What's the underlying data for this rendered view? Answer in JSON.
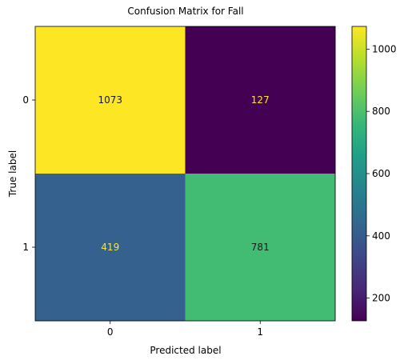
{
  "chart_data": {
    "type": "heatmap",
    "title": "Confusion Matrix for Fall",
    "xlabel": "Predicted label",
    "ylabel": "True label",
    "x_categories": [
      "0",
      "1"
    ],
    "y_categories": [
      "0",
      "1"
    ],
    "matrix": [
      [
        1073,
        127
      ],
      [
        419,
        781
      ]
    ],
    "colormap": "viridis",
    "colorbar": {
      "vmin": 127,
      "vmax": 1073,
      "ticks": [
        "200",
        "400",
        "600",
        "800",
        "1000"
      ]
    },
    "text_colors": {
      "on_dark": "#fde725",
      "on_light": "#1a1a1a"
    }
  }
}
